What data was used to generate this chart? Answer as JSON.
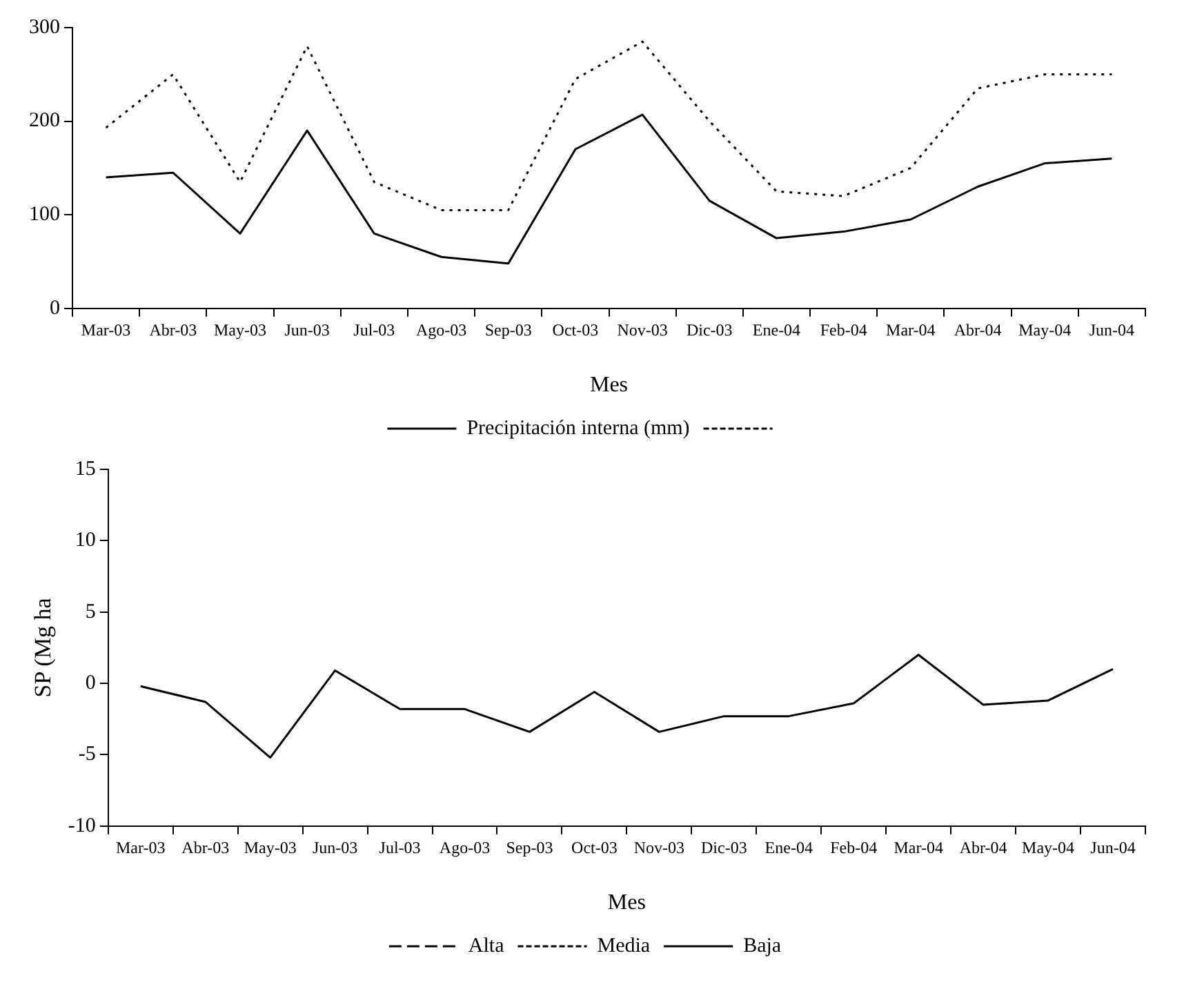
{
  "chart_data": [
    {
      "type": "line",
      "categories": [
        "Mar-03",
        "Abr-03",
        "May-03",
        "Jun-03",
        "Jul-03",
        "Ago-03",
        "Sep-03",
        "Oct-03",
        "Nov-03",
        "Dic-03",
        "Ene-04",
        "Feb-04",
        "Mar-04",
        "Abr-04",
        "May-04",
        "Jun-04"
      ],
      "xlabel": "Mes",
      "ylim": [
        0,
        300
      ],
      "yticks": [
        0,
        100,
        200,
        300
      ],
      "grid": false,
      "legend": "bottom",
      "marker": "none",
      "series": [
        {
          "name": "Precipitación interna (mm)",
          "color": "#000000",
          "line_style": "solid",
          "values": [
            140,
            145,
            80,
            190,
            80,
            55,
            48,
            170,
            207,
            115,
            75,
            82,
            95,
            130,
            155,
            160
          ]
        },
        {
          "color": "#000000",
          "line_style": "dotted",
          "values": [
            193,
            250,
            135,
            280,
            135,
            105,
            105,
            245,
            285,
            200,
            125,
            120,
            150,
            235,
            250,
            250
          ]
        }
      ]
    },
    {
      "type": "line",
      "categories": [
        "Mar-03",
        "Abr-03",
        "May-03",
        "Jun-03",
        "Jul-03",
        "Ago-03",
        "Sep-03",
        "Oct-03",
        "Nov-03",
        "Dic-03",
        "Ene-04",
        "Feb-04",
        "Mar-04",
        "Abr-04",
        "May-04",
        "Jun-04"
      ],
      "xlabel": "Mes",
      "ylabel": "SP (Mg ha",
      "ylim": [
        -10,
        15
      ],
      "yticks": [
        -10,
        -5,
        0,
        5,
        10,
        15
      ],
      "grid": false,
      "legend": "bottom",
      "marker": "none",
      "series": [
        {
          "name": "Alta",
          "color": "#000000",
          "line_style": "dashed",
          "values": [
            null,
            null,
            null,
            null,
            null,
            null,
            null,
            null,
            null,
            null,
            null,
            null,
            null,
            null,
            null,
            null
          ]
        },
        {
          "name": "Media",
          "color": "#000000",
          "line_style": "dotted",
          "values": [
            null,
            null,
            null,
            null,
            null,
            null,
            null,
            null,
            null,
            null,
            null,
            null,
            null,
            null,
            null,
            null
          ]
        },
        {
          "name": "Baja",
          "color": "#000000",
          "line_style": "solid",
          "values": [
            -0.2,
            -1.3,
            -5.2,
            0.9,
            -1.8,
            -1.8,
            -3.4,
            -0.6,
            -3.4,
            -2.3,
            -2.3,
            -1.4,
            2,
            -1.5,
            -1.2,
            1
          ]
        }
      ]
    }
  ]
}
